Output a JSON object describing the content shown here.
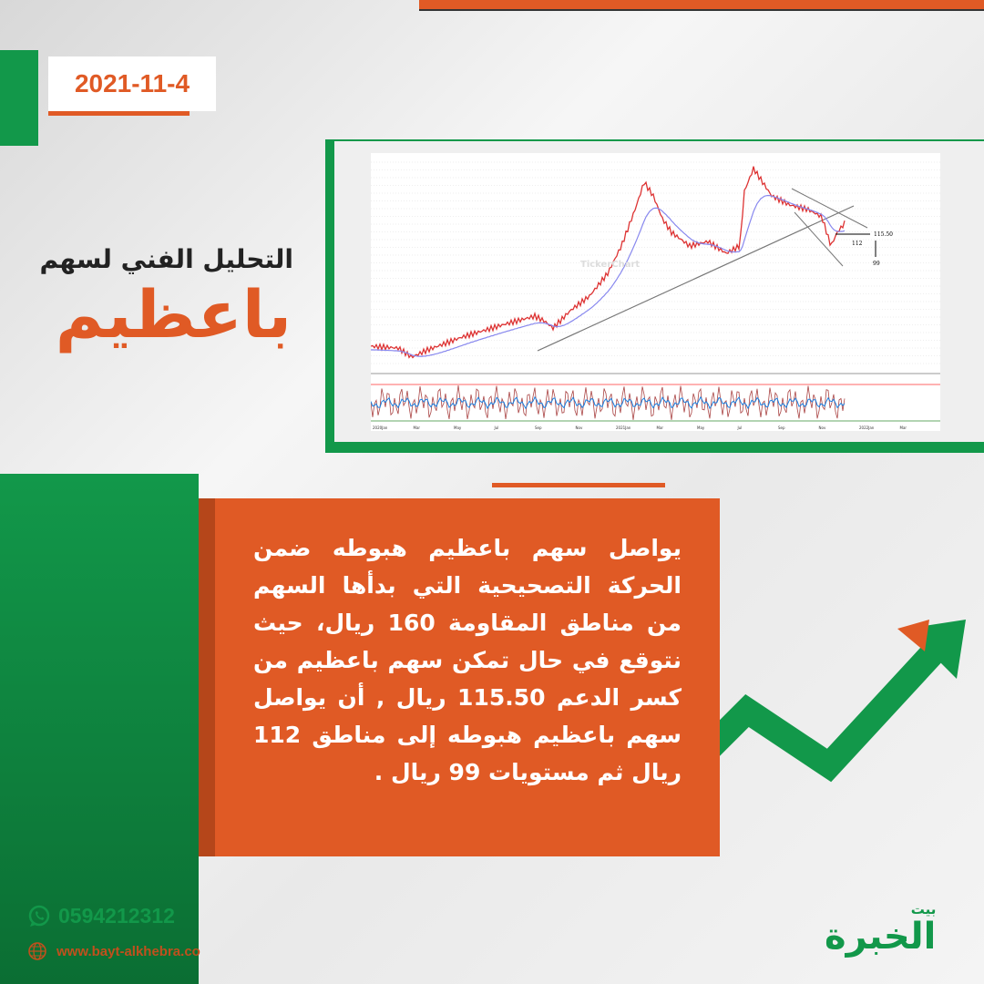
{
  "date": "2021-11-4",
  "title": {
    "line1": "التحليل الفني لسهم",
    "line2": "باعظيم"
  },
  "chart": {
    "watermark": "TickerChart",
    "x_labels": [
      "2020Jan",
      "Mar",
      "May",
      "Jul",
      "Sep",
      "Nov",
      "2021Jan",
      "Mar",
      "May",
      "Jul",
      "Sep",
      "Nov",
      "2022Jan",
      "Mar"
    ],
    "annotations": {
      "support": "115.50",
      "target1": "112",
      "target2": "99"
    }
  },
  "body_text": "يواصل سهم باعظيم هبوطه ضمن الحركة التصحيحية التي بدأها السهم من مناطق المقاومة 160 ريال، حيث نتوقع في حال تمكن سهم باعظيم من كسر الدعم 115.50 ريال , أن يواصل سهم باعظيم هبوطه إلى مناطق 112 ريال ثم مستويات 99 ريال .",
  "contact": {
    "phone": "0594212312",
    "website": "www.bayt-alkhebra.co"
  },
  "logo": {
    "top": "بيت",
    "main": "الخبرة"
  },
  "colors": {
    "orange": "#e05a25",
    "green": "#12984a"
  }
}
